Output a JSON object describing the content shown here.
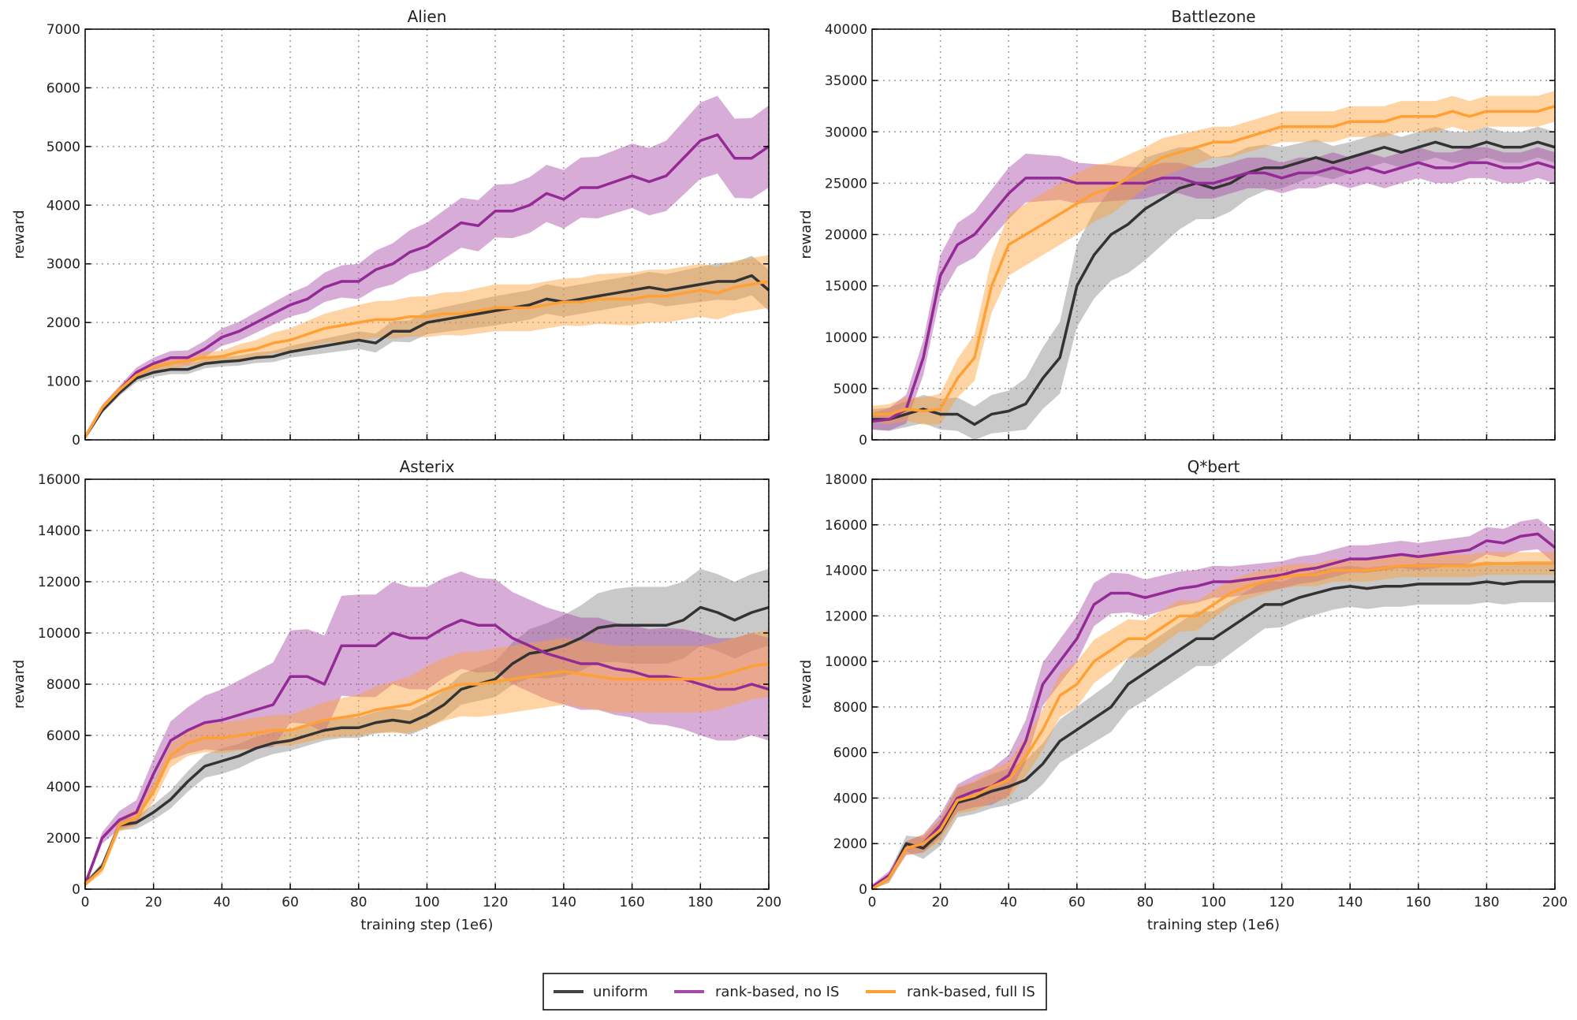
{
  "legend": {
    "placement": "bottom-center",
    "entries": [
      "uniform",
      "rank-based, no IS",
      "rank-based, full IS"
    ]
  },
  "colors": {
    "uniform": "#333333",
    "rank-based, no IS": "#932a95",
    "rank-based, full IS": "#ffa035"
  },
  "chart_data": [
    {
      "type": "line",
      "title": "Alien",
      "ylabel": "reward",
      "xlabel": "",
      "xlim": [
        0,
        200
      ],
      "ylim": [
        0,
        7000
      ],
      "xticks": [
        0,
        20,
        40,
        60,
        80,
        100,
        120,
        140,
        160,
        180,
        200
      ],
      "show_xticklabels": false,
      "yticks": [
        0,
        1000,
        2000,
        3000,
        4000,
        5000,
        6000,
        7000
      ],
      "grid": true,
      "x": [
        0,
        5,
        10,
        15,
        20,
        25,
        30,
        35,
        40,
        45,
        50,
        55,
        60,
        65,
        70,
        75,
        80,
        85,
        90,
        95,
        100,
        105,
        110,
        115,
        120,
        125,
        130,
        135,
        140,
        145,
        150,
        155,
        160,
        165,
        170,
        175,
        180,
        185,
        190,
        195,
        200
      ],
      "band_x": [
        0,
        20,
        40,
        60,
        80,
        100,
        120,
        140,
        160,
        180,
        200
      ],
      "series": [
        {
          "name": "uniform",
          "values": [
            50,
            500,
            800,
            1050,
            1150,
            1200,
            1200,
            1300,
            1330,
            1350,
            1400,
            1420,
            1500,
            1550,
            1600,
            1650,
            1700,
            1650,
            1850,
            1850,
            2000,
            2050,
            2100,
            2150,
            2200,
            2250,
            2300,
            2400,
            2350,
            2400,
            2450,
            2500,
            2550,
            2600,
            2550,
            2600,
            2650,
            2700,
            2700,
            2800,
            2550
          ],
          "band": [
            30,
            80,
            80,
            100,
            150,
            200,
            250,
            250,
            250,
            300,
            350
          ]
        },
        {
          "name": "rank-based, no IS",
          "values": [
            50,
            550,
            850,
            1150,
            1300,
            1400,
            1400,
            1550,
            1750,
            1850,
            2000,
            2150,
            2300,
            2400,
            2600,
            2700,
            2700,
            2900,
            3000,
            3200,
            3300,
            3500,
            3700,
            3650,
            3900,
            3900,
            4000,
            4200,
            4100,
            4300,
            4300,
            4400,
            4500,
            4400,
            4500,
            4800,
            5100,
            5200,
            4800,
            4800,
            5000
          ],
          "band": [
            30,
            100,
            150,
            200,
            300,
            400,
            450,
            500,
            550,
            650,
            700
          ]
        },
        {
          "name": "rank-based, full IS",
          "values": [
            50,
            550,
            850,
            1100,
            1250,
            1300,
            1350,
            1400,
            1420,
            1500,
            1550,
            1650,
            1700,
            1800,
            1900,
            1950,
            2000,
            2050,
            2050,
            2100,
            2100,
            2150,
            2150,
            2200,
            2250,
            2250,
            2250,
            2300,
            2350,
            2350,
            2400,
            2400,
            2400,
            2450,
            2450,
            2500,
            2550,
            2500,
            2600,
            2650,
            2700
          ],
          "band": [
            30,
            80,
            100,
            200,
            300,
            350,
            400,
            400,
            450,
            450,
            450
          ]
        }
      ]
    },
    {
      "type": "line",
      "title": "Battlezone",
      "ylabel": "reward",
      "xlabel": "",
      "xlim": [
        0,
        200
      ],
      "ylim": [
        0,
        40000
      ],
      "xticks": [
        0,
        20,
        40,
        60,
        80,
        100,
        120,
        140,
        160,
        180,
        200
      ],
      "show_xticklabels": false,
      "yticks": [
        0,
        5000,
        10000,
        15000,
        20000,
        25000,
        30000,
        35000,
        40000
      ],
      "grid": true,
      "x": [
        0,
        5,
        10,
        15,
        20,
        25,
        30,
        35,
        40,
        45,
        50,
        55,
        60,
        65,
        70,
        75,
        80,
        85,
        90,
        95,
        100,
        105,
        110,
        115,
        120,
        125,
        130,
        135,
        140,
        145,
        150,
        155,
        160,
        165,
        170,
        175,
        180,
        185,
        190,
        195,
        200
      ],
      "band_x": [
        0,
        20,
        40,
        60,
        80,
        100,
        120,
        140,
        160,
        180,
        200
      ],
      "series": [
        {
          "name": "uniform",
          "values": [
            2000,
            2000,
            2500,
            3000,
            2500,
            2500,
            1500,
            2500,
            2800,
            3500,
            6000,
            8000,
            15000,
            18000,
            20000,
            21000,
            22500,
            23500,
            24500,
            25000,
            24500,
            25000,
            26000,
            26500,
            26500,
            27000,
            27500,
            27000,
            27500,
            28000,
            28500,
            28000,
            28500,
            29000,
            28500,
            28500,
            29000,
            28500,
            28500,
            29000,
            28500
          ],
          "band": [
            1000,
            1500,
            2000,
            4000,
            5000,
            3000,
            2000,
            1500,
            1500,
            1500,
            1500
          ]
        },
        {
          "name": "rank-based, no IS",
          "values": [
            1800,
            2000,
            3000,
            8000,
            16000,
            19000,
            20000,
            22000,
            24000,
            25500,
            25500,
            25500,
            25000,
            25000,
            25000,
            25000,
            25000,
            25500,
            25500,
            25000,
            25000,
            25500,
            26000,
            26000,
            25500,
            26000,
            26000,
            26500,
            26000,
            26500,
            26000,
            26500,
            27000,
            26500,
            26500,
            27000,
            27000,
            26500,
            26500,
            27000,
            26500
          ],
          "band": [
            800,
            2000,
            2500,
            2000,
            1500,
            1500,
            1500,
            1500,
            1500,
            1500,
            1500
          ]
        },
        {
          "name": "rank-based, full IS",
          "values": [
            2500,
            2500,
            3000,
            2800,
            3000,
            6000,
            8000,
            15000,
            19000,
            20000,
            21000,
            22000,
            23000,
            24000,
            24500,
            25500,
            26500,
            27500,
            28000,
            28500,
            29000,
            29000,
            29500,
            30000,
            30500,
            30500,
            30500,
            30500,
            31000,
            31000,
            31000,
            31500,
            31500,
            31500,
            32000,
            31500,
            32000,
            32000,
            32000,
            32000,
            32500
          ],
          "band": [
            800,
            1500,
            3000,
            3000,
            2000,
            1500,
            1500,
            1500,
            1500,
            1500,
            1500
          ]
        }
      ]
    },
    {
      "type": "line",
      "title": "Asterix",
      "ylabel": "reward",
      "xlabel": "training step (1e6)",
      "xlim": [
        0,
        200
      ],
      "ylim": [
        0,
        16000
      ],
      "xticks": [
        0,
        20,
        40,
        60,
        80,
        100,
        120,
        140,
        160,
        180,
        200
      ],
      "show_xticklabels": true,
      "yticks": [
        0,
        2000,
        4000,
        6000,
        8000,
        10000,
        12000,
        14000,
        16000
      ],
      "grid": true,
      "x": [
        0,
        5,
        10,
        15,
        20,
        25,
        30,
        35,
        40,
        45,
        50,
        55,
        60,
        65,
        70,
        75,
        80,
        85,
        90,
        95,
        100,
        105,
        110,
        115,
        120,
        125,
        130,
        135,
        140,
        145,
        150,
        155,
        160,
        165,
        170,
        175,
        180,
        185,
        190,
        195,
        200
      ],
      "band_x": [
        0,
        20,
        40,
        60,
        80,
        100,
        120,
        140,
        160,
        180,
        200
      ],
      "series": [
        {
          "name": "uniform",
          "values": [
            200,
            900,
            2500,
            2600,
            3000,
            3500,
            4200,
            4800,
            5000,
            5200,
            5500,
            5700,
            5800,
            6000,
            6200,
            6300,
            6300,
            6500,
            6600,
            6500,
            6800,
            7200,
            7800,
            8000,
            8200,
            8800,
            9200,
            9300,
            9500,
            9800,
            10200,
            10300,
            10300,
            10300,
            10300,
            10500,
            11000,
            10800,
            10500,
            10800,
            11000
          ],
          "band": [
            100,
            300,
            500,
            400,
            400,
            500,
            700,
            1200,
            1500,
            1500,
            1500
          ]
        },
        {
          "name": "rank-based, no IS",
          "values": [
            200,
            2000,
            2700,
            3000,
            4500,
            5800,
            6200,
            6500,
            6600,
            6800,
            7000,
            7200,
            8300,
            8300,
            8000,
            9500,
            9500,
            9500,
            10000,
            9800,
            9800,
            10200,
            10500,
            10300,
            10300,
            9800,
            9500,
            9200,
            9000,
            8800,
            8800,
            8600,
            8500,
            8300,
            8300,
            8200,
            8000,
            7800,
            7800,
            8000,
            7800
          ],
          "band": [
            100,
            600,
            1200,
            1800,
            2000,
            2000,
            1800,
            1800,
            1800,
            2000,
            2000
          ]
        },
        {
          "name": "rank-based, full IS",
          "values": [
            200,
            800,
            2500,
            2800,
            3800,
            5200,
            5700,
            5900,
            5900,
            6000,
            6100,
            6200,
            6200,
            6400,
            6600,
            6700,
            6800,
            7000,
            7100,
            7200,
            7500,
            7800,
            8000,
            8000,
            8100,
            8200,
            8300,
            8400,
            8500,
            8400,
            8300,
            8200,
            8200,
            8200,
            8200,
            8200,
            8200,
            8300,
            8500,
            8700,
            8800
          ],
          "band": [
            100,
            400,
            600,
            600,
            800,
            1200,
            1300,
            1300,
            1300,
            1300,
            1300
          ]
        }
      ]
    },
    {
      "type": "line",
      "title": "Q*bert",
      "ylabel": "reward",
      "xlabel": "training step (1e6)",
      "xlim": [
        0,
        200
      ],
      "ylim": [
        0,
        18000
      ],
      "xticks": [
        0,
        20,
        40,
        60,
        80,
        100,
        120,
        140,
        160,
        180,
        200
      ],
      "show_xticklabels": true,
      "yticks": [
        0,
        2000,
        4000,
        6000,
        8000,
        10000,
        12000,
        14000,
        16000,
        18000
      ],
      "grid": true,
      "x": [
        0,
        5,
        10,
        15,
        20,
        25,
        30,
        35,
        40,
        45,
        50,
        55,
        60,
        65,
        70,
        75,
        80,
        85,
        90,
        95,
        100,
        105,
        110,
        115,
        120,
        125,
        130,
        135,
        140,
        145,
        150,
        155,
        160,
        165,
        170,
        175,
        180,
        185,
        190,
        195,
        200
      ],
      "band_x": [
        0,
        20,
        40,
        60,
        80,
        100,
        120,
        140,
        160,
        180,
        200
      ],
      "series": [
        {
          "name": "uniform",
          "values": [
            0,
            500,
            2000,
            1800,
            2500,
            3800,
            4000,
            4300,
            4500,
            4800,
            5500,
            6500,
            7000,
            7500,
            8000,
            9000,
            9500,
            10000,
            10500,
            11000,
            11000,
            11500,
            12000,
            12500,
            12500,
            12800,
            13000,
            13200,
            13300,
            13200,
            13300,
            13300,
            13400,
            13400,
            13400,
            13400,
            13500,
            13400,
            13500,
            13500,
            13500
          ],
          "band": [
            100,
            600,
            800,
            1000,
            1200,
            1200,
            1000,
            900,
            900,
            900,
            900
          ]
        },
        {
          "name": "rank-based, no IS",
          "values": [
            100,
            600,
            1800,
            2000,
            2800,
            4000,
            4300,
            4500,
            5000,
            6500,
            9000,
            10000,
            11000,
            12500,
            13000,
            13000,
            12800,
            13000,
            13200,
            13300,
            13500,
            13500,
            13600,
            13700,
            13800,
            14000,
            14100,
            14300,
            14500,
            14500,
            14600,
            14700,
            14600,
            14700,
            14800,
            14900,
            15300,
            15200,
            15500,
            15600,
            15000
          ],
          "band": [
            100,
            500,
            900,
            1000,
            800,
            700,
            600,
            600,
            600,
            600,
            700
          ]
        },
        {
          "name": "rank-based, full IS",
          "values": [
            0,
            500,
            1800,
            2000,
            2600,
            3900,
            4100,
            4500,
            4800,
            5800,
            7000,
            8500,
            9000,
            10000,
            10500,
            11000,
            11000,
            11500,
            12000,
            12000,
            12500,
            13000,
            13300,
            13500,
            13700,
            13800,
            13800,
            14000,
            14000,
            14000,
            14100,
            14200,
            14200,
            14200,
            14200,
            14200,
            14300,
            14300,
            14300,
            14300,
            14300
          ],
          "band": [
            100,
            500,
            800,
            1000,
            800,
            600,
            500,
            500,
            500,
            500,
            500
          ]
        }
      ]
    }
  ]
}
